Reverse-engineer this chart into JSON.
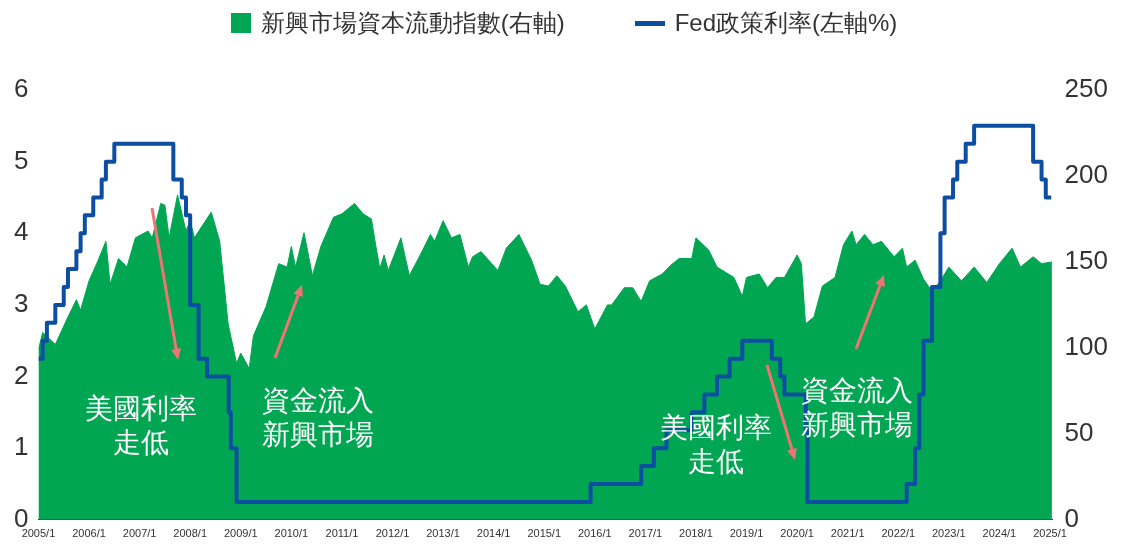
{
  "chart_data": {
    "type": "line",
    "legend": "top",
    "xlim": [
      "2005-01-01",
      "2025-01-20"
    ],
    "xticks": [
      {
        "value": "2005-01",
        "label": "2005/1"
      },
      {
        "value": "2006-01",
        "label": "2006/1"
      },
      {
        "value": "2007-01",
        "label": "2007/1"
      },
      {
        "value": "2008-01",
        "label": "2008/1"
      },
      {
        "value": "2009-01",
        "label": "2009/1"
      },
      {
        "value": "2010-01",
        "label": "2010/1"
      },
      {
        "value": "2011-01",
        "label": "2011/1"
      },
      {
        "value": "2012-01",
        "label": "2012/1"
      },
      {
        "value": "2013-01",
        "label": "2013/1"
      },
      {
        "value": "2014-01",
        "label": "2014/1"
      },
      {
        "value": "2015-01",
        "label": "2015/1"
      },
      {
        "value": "2016-01",
        "label": "2016/1"
      },
      {
        "value": "2017-01",
        "label": "2017/1"
      },
      {
        "value": "2018-01",
        "label": "2018/1"
      },
      {
        "value": "2019-01",
        "label": "2019/1"
      },
      {
        "value": "2020-01",
        "label": "2020/1"
      },
      {
        "value": "2021-01",
        "label": "2021/1"
      },
      {
        "value": "2022-01",
        "label": "2022/1"
      },
      {
        "value": "2023-01",
        "label": "2023/1"
      },
      {
        "value": "2024-01",
        "label": "2024/1"
      },
      {
        "value": "2025-01",
        "label": "2025/1"
      }
    ],
    "ylim": [
      0,
      6
    ],
    "yticks": [
      0,
      1,
      2,
      3,
      4,
      5,
      6
    ],
    "y2lim": [
      0,
      250
    ],
    "y2ticks": [
      0,
      50,
      100,
      150,
      200,
      250
    ],
    "annotations": [
      "美國利率走低",
      "資金流入新興市場",
      "美國利率走低",
      "資金流入新興市場"
    ],
    "series": [
      {
        "name": "新興市場資本流動指數(右軸)",
        "type": "area",
        "axis": "y2",
        "color": "#00a651",
        "x": [
          "2005-01",
          "2005-02",
          "2005-05",
          "2005-08",
          "2005-10",
          "2005-11",
          "2006-01",
          "2006-03",
          "2006-05",
          "2006-06",
          "2006-08",
          "2006-10",
          "2006-12",
          "2007-03",
          "2007-04",
          "2007-06",
          "2007-07",
          "2007-08",
          "2007-10",
          "2007-12",
          "2008-01",
          "2008-02",
          "2008-06",
          "2008-08",
          "2008-10",
          "2008-12",
          "2009-01",
          "2009-03",
          "2009-04",
          "2009-07",
          "2009-10",
          "2009-12",
          "2010-01",
          "2010-02",
          "2010-04",
          "2010-06",
          "2010-08",
          "2010-11",
          "2011-01",
          "2011-04",
          "2011-06",
          "2011-08",
          "2011-09",
          "2011-10",
          "2011-11",
          "2011-12",
          "2012-03",
          "2012-05",
          "2012-08",
          "2012-10",
          "2012-11",
          "2013-01",
          "2013-03",
          "2013-05",
          "2013-07",
          "2013-08",
          "2013-10",
          "2014-02",
          "2014-04",
          "2014-07",
          "2014-10",
          "2014-12",
          "2015-02",
          "2015-04",
          "2015-06",
          "2015-09",
          "2015-11",
          "2016-01",
          "2016-04",
          "2016-05",
          "2016-08",
          "2016-10",
          "2016-12",
          "2017-02",
          "2017-05",
          "2017-07",
          "2017-09",
          "2017-12",
          "2018-01",
          "2018-04",
          "2018-06",
          "2018-08",
          "2018-10",
          "2018-12",
          "2019-01",
          "2019-04",
          "2019-06",
          "2019-08",
          "2019-10",
          "2020-01",
          "2020-02",
          "2020-03",
          "2020-05",
          "2020-07",
          "2020-10",
          "2020-12",
          "2021-02",
          "2021-03",
          "2021-05",
          "2021-07",
          "2021-09",
          "2021-12",
          "2022-02",
          "2022-03",
          "2022-05",
          "2022-07",
          "2022-09",
          "2022-11",
          "2023-01",
          "2023-04",
          "2023-07",
          "2023-10",
          "2024-01",
          "2024-04",
          "2024-06",
          "2024-09",
          "2024-11",
          "2025-01-15"
        ],
        "values": [
          99,
          109,
          102,
          118,
          128,
          122,
          139,
          150,
          162,
          137,
          152,
          147,
          164,
          168,
          164,
          184,
          183,
          164,
          189,
          168,
          174,
          164,
          179,
          162,
          114,
          91,
          97,
          88,
          107,
          124,
          149,
          147,
          159,
          147,
          167,
          142,
          159,
          176,
          178,
          184,
          178,
          175,
          160,
          146,
          154,
          145,
          164,
          142,
          156,
          166,
          162,
          174,
          164,
          166,
          147,
          153,
          156,
          145,
          158,
          166,
          151,
          137,
          136,
          142,
          136,
          121,
          125,
          111,
          125,
          125,
          135,
          135,
          127,
          139,
          143,
          148,
          152,
          152,
          164,
          157,
          147,
          144,
          141,
          130,
          141,
          143,
          135,
          141,
          141,
          154,
          149,
          114,
          118,
          136,
          141,
          160,
          168,
          160,
          166,
          160,
          162,
          153,
          158,
          147,
          151,
          140,
          133,
          139,
          147,
          139,
          147,
          138,
          149,
          158,
          147,
          153,
          149,
          150
        ]
      },
      {
        "name": "Fed政策利率(左軸%)",
        "type": "step",
        "color": "#0b4ea2",
        "x": [
          "2005-01",
          "2005-02",
          "2005-03",
          "2005-05",
          "2005-07",
          "2005-08",
          "2005-10",
          "2005-11",
          "2005-12",
          "2006-02",
          "2006-04",
          "2006-05",
          "2006-07",
          "2007-09",
          "2007-11",
          "2007-12",
          "2008-01",
          "2008-03",
          "2008-05",
          "2008-10-05",
          "2008-10-20",
          "2008-12",
          "2015-12",
          "2016-12",
          "2017-03",
          "2017-06",
          "2017-12",
          "2018-03",
          "2018-06",
          "2018-09",
          "2018-12",
          "2019-07",
          "2019-09",
          "2019-10",
          "2020-03-03",
          "2020-03-15",
          "2022-03",
          "2022-05",
          "2022-06",
          "2022-07",
          "2022-09",
          "2022-11",
          "2022-12",
          "2023-02",
          "2023-03",
          "2023-05",
          "2023-07",
          "2024-09",
          "2024-11",
          "2024-12",
          "2025-01-10"
        ],
        "values": [
          2.25,
          2.5,
          2.75,
          3.0,
          3.25,
          3.5,
          3.75,
          4.0,
          4.25,
          4.5,
          4.75,
          5.0,
          5.25,
          4.75,
          4.5,
          4.25,
          3.0,
          2.25,
          2.0,
          1.5,
          1.0,
          0.25,
          0.5,
          0.75,
          1.0,
          1.25,
          1.5,
          1.75,
          2.0,
          2.25,
          2.5,
          2.25,
          2.0,
          1.75,
          1.25,
          0.25,
          0.5,
          1.0,
          1.75,
          2.5,
          3.25,
          4.0,
          4.5,
          4.75,
          5.0,
          5.25,
          5.5,
          5.0,
          4.75,
          4.5,
          4.5
        ]
      }
    ]
  }
}
